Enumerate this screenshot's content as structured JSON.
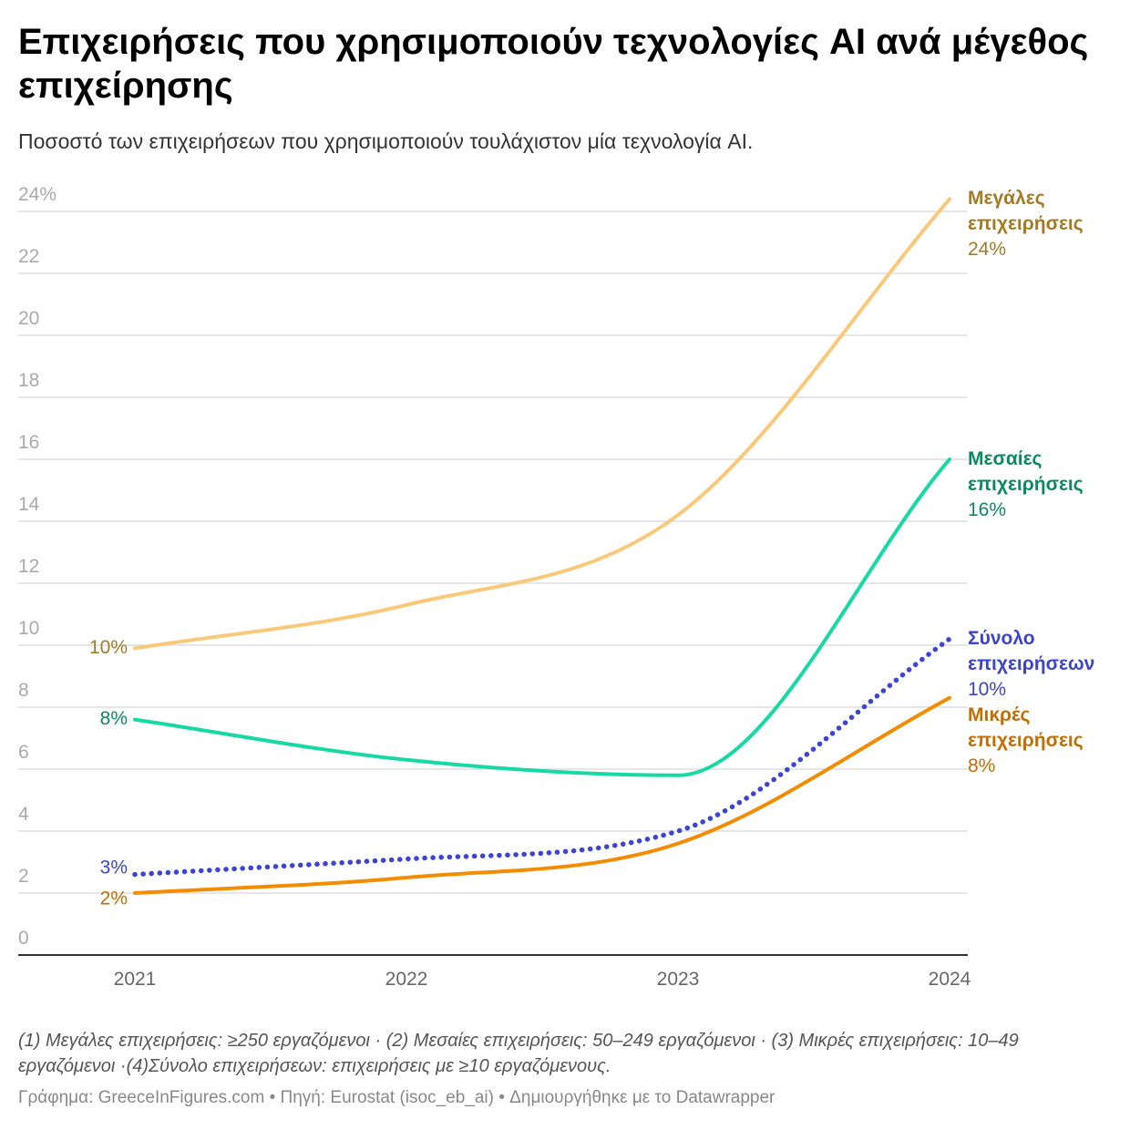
{
  "chart_data": {
    "type": "line",
    "title": "Επιχειρήσεις που χρησιμοποιούν τεχνολογίες AI ανά μέγεθος επιχείρησης",
    "subtitle": "Ποσοστό των επιχειρήσεων που χρησιμοποιούν τουλάχιστον μία τεχνολογία AI.",
    "categories": [
      "2021",
      "2022",
      "2023",
      "2024"
    ],
    "series": [
      {
        "name": "Μεγάλες επιχειρήσεις",
        "color": "#f9c878",
        "label_color": "#a47a22",
        "dash": false,
        "values": [
          9.9,
          11.3,
          14.2,
          24.4
        ],
        "value_labels": [
          "10%",
          null,
          null,
          "24%"
        ]
      },
      {
        "name": "Μεσαίες επιχειρήσεις",
        "color": "#16d9a3",
        "label_color": "#0a8a5e",
        "dash": false,
        "values": [
          7.6,
          6.3,
          5.8,
          16.0
        ],
        "value_labels": [
          "8%",
          null,
          null,
          "16%"
        ]
      },
      {
        "name": "Σύνολο επιχειρήσεων",
        "color": "#3b44d4",
        "label_color": "#3b44cc",
        "dash": true,
        "values": [
          2.6,
          3.1,
          4.0,
          10.2
        ],
        "value_labels": [
          "3%",
          null,
          null,
          "10%"
        ]
      },
      {
        "name": "Μικρές επιχειρήσεις",
        "color": "#f28c00",
        "label_color": "#c66c00",
        "dash": false,
        "values": [
          2.0,
          2.5,
          3.6,
          8.3
        ],
        "value_labels": [
          "2%",
          null,
          null,
          "8%"
        ]
      }
    ],
    "ylim": [
      0,
      24.5
    ],
    "yticks": [
      0,
      2,
      4,
      6,
      8,
      10,
      12,
      14,
      16,
      18,
      20,
      22,
      {
        "value": 24,
        "label": "24%"
      }
    ],
    "grid": true,
    "notes": "(1) Μεγάλες επιχειρήσεις: ≥250 εργαζόμενοι · (2) Μεσαίες επιχειρήσεις: 50–249 εργαζόμενοι · (3) Μικρές επιχειρήσεις: 10–49 εργαζόμενοι ·(4)Σύνολο επιχειρήσεων: επιχειρήσεις με ≥10 εργαζόμενους.",
    "credit": "Γράφημα: GreeceInFigures.com • Πηγή: Eurostat (isoc_eb_ai) • Δημιουργήθηκε με το Datawrapper"
  }
}
